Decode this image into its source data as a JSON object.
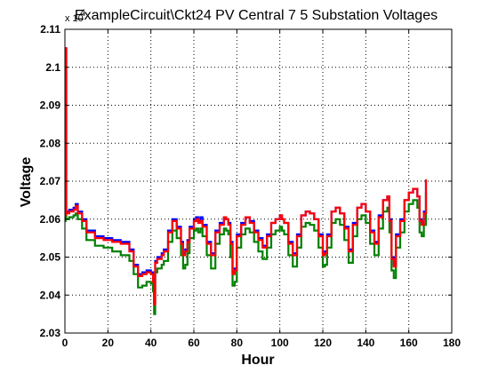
{
  "chart_data": {
    "type": "line",
    "title": "ExampleCircuit\\Ckt24 PV Central 7 5 Substation Voltages",
    "xlabel": "Hour",
    "ylabel": "Voltage",
    "y_multiplier": "x 10",
    "y_multiplier_exp": "4",
    "xlim": [
      0,
      180
    ],
    "ylim": [
      20300,
      21100
    ],
    "xticks": [
      0,
      20,
      40,
      60,
      80,
      100,
      120,
      140,
      160,
      180
    ],
    "yticks": [
      20300,
      20400,
      20500,
      20600,
      20700,
      20800,
      20900,
      21000,
      21100
    ],
    "ytick_labels": [
      "2.03",
      "2.04",
      "2.05",
      "2.06",
      "2.07",
      "2.08",
      "2.09",
      "2.1",
      "2.11"
    ],
    "grid": true,
    "grid_style": "dotted",
    "series": [
      {
        "color": "#0000ff",
        "x": [
          0,
          0.3,
          0.6,
          2,
          4,
          5,
          6,
          8,
          10,
          14,
          18,
          22,
          26,
          30,
          32,
          34,
          36,
          38,
          40,
          41,
          41.5,
          42,
          43,
          45,
          46,
          48,
          50,
          52,
          54,
          55,
          56,
          57,
          58,
          60,
          61,
          62,
          63,
          64,
          66,
          68,
          70,
          72,
          74,
          75,
          76,
          77,
          78,
          79,
          80,
          82,
          84,
          86,
          88,
          90,
          92,
          94,
          96,
          98,
          100,
          101,
          102,
          104,
          106,
          108,
          110,
          112,
          114,
          116,
          118,
          120,
          121,
          122,
          124,
          126,
          128,
          130,
          132,
          134,
          136,
          138,
          140,
          142,
          144,
          146,
          148,
          150,
          151,
          152,
          153,
          154,
          156,
          158,
          160,
          162,
          164,
          165,
          166,
          167,
          168
        ],
        "y": [
          20615,
          21050,
          20620,
          20625,
          20630,
          20640,
          20620,
          20600,
          20570,
          20555,
          20550,
          20545,
          20540,
          20520,
          20480,
          20455,
          20460,
          20465,
          20460,
          20440,
          20380,
          20490,
          20500,
          20510,
          20520,
          20570,
          20600,
          20580,
          20540,
          20510,
          20520,
          20545,
          20580,
          20600,
          20605,
          20595,
          20605,
          20585,
          20540,
          20510,
          20570,
          20590,
          20605,
          20600,
          20590,
          20540,
          20460,
          20470,
          20560,
          20590,
          20605,
          20595,
          20570,
          20550,
          20530,
          20560,
          20590,
          20600,
          20610,
          20600,
          20590,
          20540,
          20510,
          20560,
          20610,
          20620,
          20615,
          20600,
          20560,
          20510,
          20515,
          20560,
          20620,
          20630,
          20615,
          20580,
          20520,
          20590,
          20630,
          20640,
          20620,
          20570,
          20540,
          20610,
          20650,
          20660,
          20600,
          20500,
          20480,
          20560,
          20600,
          20650,
          20670,
          20680,
          20660,
          20600,
          20590,
          20620,
          20700
        ]
      },
      {
        "color": "#008000",
        "x": [
          0,
          0.3,
          0.6,
          2,
          4,
          5,
          6,
          8,
          10,
          14,
          18,
          22,
          26,
          30,
          32,
          34,
          36,
          38,
          40,
          41,
          41.5,
          42,
          43,
          45,
          46,
          48,
          50,
          52,
          54,
          55,
          56,
          57,
          58,
          60,
          61,
          62,
          63,
          64,
          66,
          68,
          70,
          72,
          74,
          75,
          76,
          77,
          78,
          79,
          80,
          82,
          84,
          86,
          88,
          90,
          92,
          94,
          96,
          98,
          100,
          101,
          102,
          104,
          106,
          108,
          110,
          112,
          114,
          116,
          118,
          120,
          121,
          122,
          124,
          126,
          128,
          130,
          132,
          134,
          136,
          138,
          140,
          142,
          144,
          146,
          148,
          150,
          151,
          152,
          153,
          154,
          156,
          158,
          160,
          162,
          164,
          165,
          166,
          167,
          168
        ],
        "y": [
          20595,
          20610,
          20600,
          20605,
          20610,
          20615,
          20600,
          20575,
          20545,
          20530,
          20525,
          20515,
          20505,
          20490,
          20455,
          20420,
          20425,
          20435,
          20430,
          20410,
          20350,
          20460,
          20470,
          20480,
          20490,
          20540,
          20570,
          20550,
          20505,
          20470,
          20480,
          20510,
          20550,
          20570,
          20575,
          20565,
          20575,
          20555,
          20505,
          20470,
          20535,
          20560,
          20575,
          20570,
          20560,
          20500,
          20425,
          20435,
          20525,
          20560,
          20575,
          20565,
          20540,
          20515,
          20495,
          20525,
          20560,
          20570,
          20580,
          20570,
          20560,
          20505,
          20475,
          20525,
          20580,
          20590,
          20585,
          20570,
          20525,
          20475,
          20480,
          20525,
          20590,
          20600,
          20585,
          20545,
          20485,
          20555,
          20600,
          20610,
          20590,
          20535,
          20505,
          20575,
          20620,
          20630,
          20565,
          20465,
          20445,
          20525,
          20565,
          20620,
          20640,
          20650,
          20630,
          20565,
          20555,
          20585,
          20670
        ]
      },
      {
        "color": "#ff0000",
        "x": [
          0,
          0.3,
          0.6,
          2,
          4,
          5,
          6,
          8,
          10,
          14,
          18,
          22,
          26,
          30,
          32,
          34,
          36,
          38,
          40,
          41,
          41.5,
          42,
          43,
          45,
          46,
          48,
          50,
          52,
          54,
          55,
          56,
          57,
          58,
          60,
          61,
          62,
          63,
          64,
          66,
          68,
          70,
          72,
          74,
          75,
          76,
          77,
          78,
          79,
          80,
          82,
          84,
          86,
          88,
          90,
          92,
          94,
          96,
          98,
          100,
          101,
          102,
          104,
          106,
          108,
          110,
          112,
          114,
          116,
          118,
          120,
          121,
          122,
          124,
          126,
          128,
          130,
          132,
          134,
          136,
          138,
          140,
          142,
          144,
          146,
          148,
          150,
          151,
          152,
          153,
          154,
          156,
          158,
          160,
          162,
          164,
          165,
          166,
          167,
          168
        ],
        "y": [
          20610,
          21050,
          20615,
          20620,
          20625,
          20635,
          20615,
          20595,
          20565,
          20550,
          20545,
          20540,
          20535,
          20515,
          20475,
          20450,
          20455,
          20460,
          20455,
          20435,
          20375,
          20485,
          20495,
          20505,
          20515,
          20565,
          20595,
          20575,
          20535,
          20505,
          20515,
          20540,
          20575,
          20595,
          20600,
          20590,
          20595,
          20580,
          20535,
          20505,
          20565,
          20585,
          20605,
          20600,
          20585,
          20535,
          20455,
          20465,
          20555,
          20585,
          20605,
          20590,
          20565,
          20545,
          20525,
          20555,
          20590,
          20600,
          20610,
          20600,
          20590,
          20535,
          20505,
          20555,
          20610,
          20620,
          20615,
          20600,
          20555,
          20505,
          20510,
          20555,
          20620,
          20630,
          20615,
          20575,
          20515,
          20585,
          20630,
          20640,
          20620,
          20565,
          20535,
          20605,
          20650,
          20660,
          20595,
          20495,
          20475,
          20555,
          20595,
          20650,
          20670,
          20680,
          20660,
          20595,
          20585,
          20615,
          20705
        ]
      }
    ]
  }
}
